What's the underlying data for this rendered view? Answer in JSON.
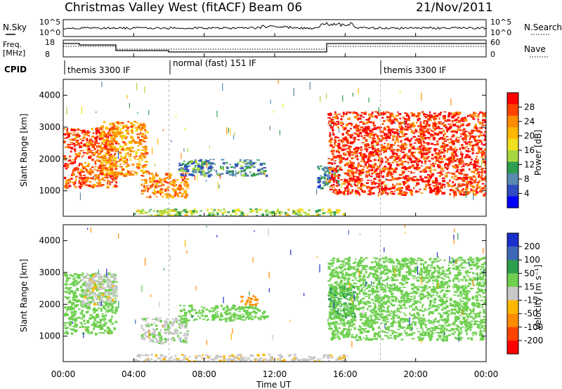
{
  "header": {
    "title": "Christmas Valley West (fitACF)",
    "beam": "Beam 06",
    "date": "21/Nov/2011"
  },
  "panels": {
    "nsky_label": "N.Sky",
    "nsky_ticks": [
      "10^5",
      "10^0"
    ],
    "nsearch_label": "N.Search",
    "nsearch_ticks": [
      "10^5",
      "10^0"
    ],
    "freq_label_1": "Freq.",
    "freq_label_2": "[MHz]",
    "freq_ticks": [
      "18",
      "8"
    ],
    "nave_label": "Nave",
    "nave_ticks": [
      "60",
      "0"
    ],
    "cpid_label": "CPID",
    "cpid_segments": [
      "themis 3300 IF",
      "normal (fast) 151 IF",
      "themis 3300 IF"
    ]
  },
  "colorbars": {
    "power": {
      "title": "Power [dB]",
      "ticks": [
        "28",
        "24",
        "20",
        "16",
        "12",
        "8",
        "4"
      ],
      "colors": [
        "#ff0000",
        "#ff4400",
        "#ff8c00",
        "#ffb800",
        "#f0e020",
        "#a8d840",
        "#2f9e4f",
        "#5a8ab0",
        "#2f4cc0",
        "#0000ff"
      ]
    },
    "velocity": {
      "title": "Velocity [m s⁻¹]",
      "ticks": [
        "200",
        "100",
        "50",
        "15",
        "-15",
        "-50",
        "-100",
        "-200"
      ],
      "colors": [
        "#1b2fcc",
        "#3f67b8",
        "#2f9e4f",
        "#6fd050",
        "#c8c8c8",
        "#ffb800",
        "#ff8c00",
        "#ff4400",
        "#ff0000"
      ]
    }
  },
  "chart_data": [
    {
      "type": "heatmap",
      "name": "power",
      "ylabel": "Slant Range [km]",
      "ylim": [
        200,
        4500
      ],
      "yticks": [
        1000,
        2000,
        3000,
        4000
      ],
      "xlim": [
        0,
        24
      ],
      "xticks": [
        "00:00",
        "04:00",
        "08:00",
        "12:00",
        "16:00",
        "20:00",
        "00:00"
      ],
      "regions": [
        {
          "t": [
            0.0,
            3.0
          ],
          "range": [
            1100,
            3000
          ],
          "level": 26
        },
        {
          "t": [
            2.0,
            4.7
          ],
          "range": [
            1500,
            3200
          ],
          "level": 22
        },
        {
          "t": [
            4.4,
            7.0
          ],
          "range": [
            800,
            1600
          ],
          "level": 24
        },
        {
          "t": [
            6.5,
            11.5
          ],
          "range": [
            1500,
            2000
          ],
          "level": 8
        },
        {
          "t": [
            14.4,
            15.6
          ],
          "range": [
            1100,
            1800
          ],
          "level": 6
        },
        {
          "t": [
            15.0,
            24.0
          ],
          "range": [
            900,
            3500
          ],
          "level": 28
        },
        {
          "t": [
            4.0,
            16.0
          ],
          "range": [
            200,
            450
          ],
          "level": 14
        }
      ]
    },
    {
      "type": "heatmap",
      "name": "velocity",
      "ylabel": "Slant Range [km]",
      "ylim": [
        200,
        4500
      ],
      "yticks": [
        1000,
        2000,
        3000,
        4000
      ],
      "xlim": [
        0,
        24
      ],
      "xlabel": "Time UT",
      "xticks": [
        "00:00",
        "04:00",
        "08:00",
        "12:00",
        "16:00",
        "20:00",
        "00:00"
      ],
      "regions": [
        {
          "t": [
            0.0,
            3.0
          ],
          "range": [
            1100,
            3000
          ],
          "value": 0
        },
        {
          "t": [
            1.0,
            3.0
          ],
          "range": [
            2000,
            3000
          ],
          "value": -40
        },
        {
          "t": [
            4.4,
            7.0
          ],
          "range": [
            800,
            1600
          ],
          "value": -20
        },
        {
          "t": [
            6.5,
            11.5
          ],
          "range": [
            1500,
            2000
          ],
          "value": 0
        },
        {
          "t": [
            10.0,
            11.0
          ],
          "range": [
            2000,
            2300
          ],
          "value": -150
        },
        {
          "t": [
            15.0,
            16.5
          ],
          "range": [
            1600,
            2600
          ],
          "value": 30
        },
        {
          "t": [
            15.0,
            24.0
          ],
          "range": [
            900,
            3500
          ],
          "value": 0
        },
        {
          "t": [
            4.0,
            16.0
          ],
          "range": [
            200,
            450
          ],
          "value": -40
        }
      ]
    }
  ]
}
